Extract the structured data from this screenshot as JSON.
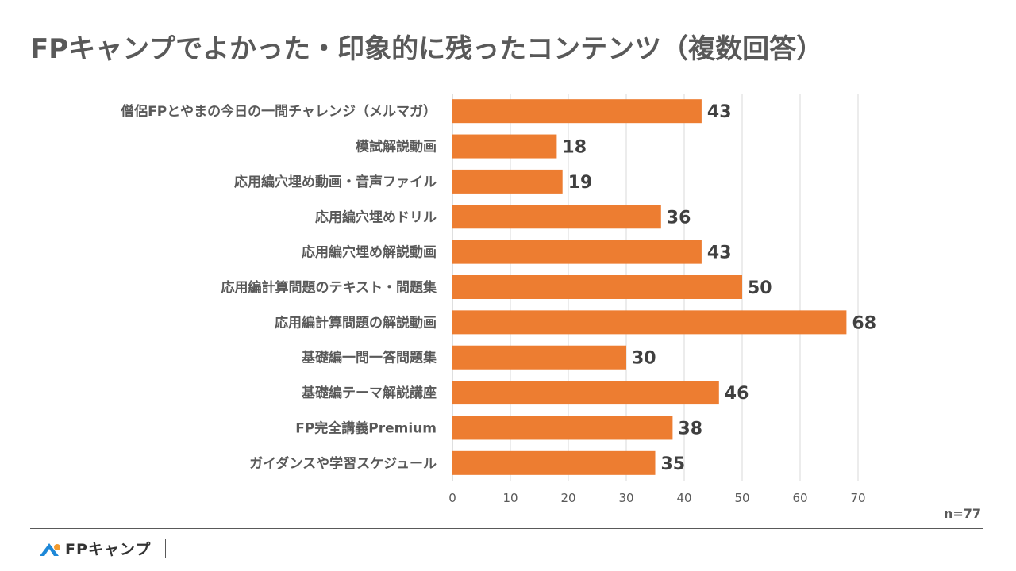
{
  "header": {
    "title": "FPキャンプでよかった・印象的に残ったコンテンツ（複数回答）"
  },
  "chart_data": {
    "type": "bar",
    "orientation": "horizontal",
    "title": "FPキャンプでよかった・印象的に残ったコンテンツ（複数回答）",
    "categories": [
      "僧侶FPとやまの今日の一問チャレンジ（メルマガ）",
      "模試解説動画",
      "応用編穴埋め動画・音声ファイル",
      "応用編穴埋めドリル",
      "応用編穴埋め解説動画",
      "応用編計算問題のテキスト・問題集",
      "応用編計算問題の解説動画",
      "基礎編一問一答問題集",
      "基礎編テーマ解説講座",
      "FP完全講義Premium",
      "ガイダンスや学習スケジュール"
    ],
    "values": [
      43,
      18,
      19,
      36,
      43,
      50,
      68,
      30,
      46,
      38,
      35
    ],
    "xlim": [
      0,
      70
    ],
    "xticks": [
      0,
      10,
      20,
      30,
      40,
      50,
      60,
      70
    ],
    "grid": true,
    "bar_color": "#ED7D31",
    "data_labels": true,
    "annotation": "n=77"
  },
  "footer": {
    "note": "n=77",
    "logo_text": "FPキャンプ"
  }
}
